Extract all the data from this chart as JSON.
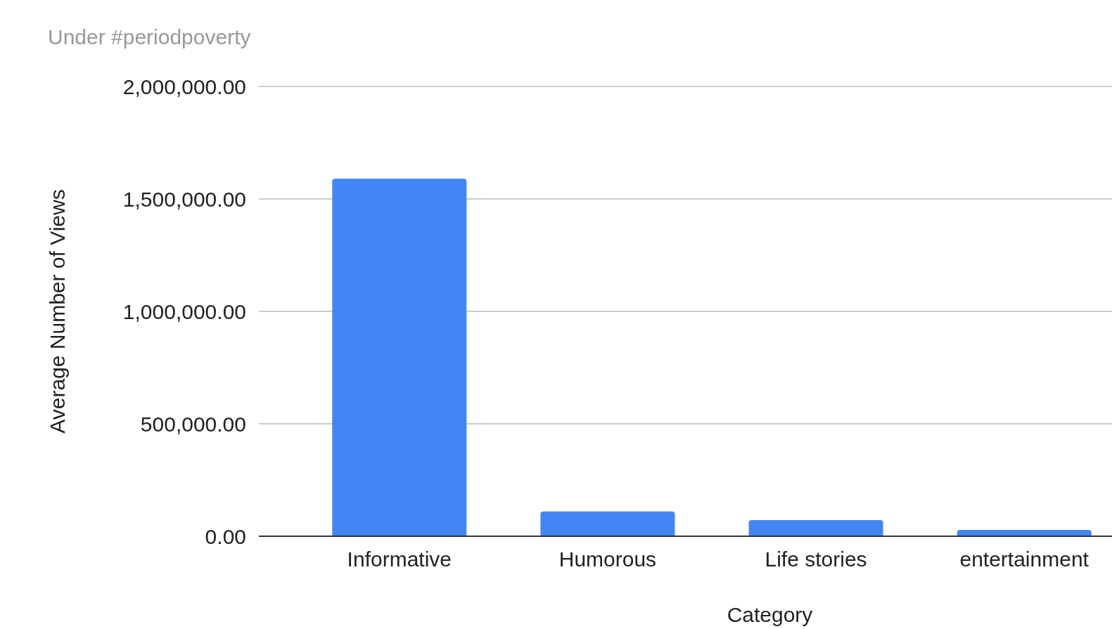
{
  "chart_data": {
    "type": "bar",
    "subtitle": "Under #periodpoverty",
    "xlabel": "Category",
    "ylabel": "Average Number of Views",
    "categories": [
      "Informative",
      "Humorous",
      "Life stories",
      "entertainment"
    ],
    "values": [
      1590000,
      110000,
      72000,
      28000
    ],
    "color": "#4285f4",
    "ylim": [
      0,
      2000000
    ],
    "yticks": [
      {
        "value": 0,
        "label": "0.00"
      },
      {
        "value": 500000,
        "label": "500,000.00"
      },
      {
        "value": 1000000,
        "label": "1,000,000.00"
      },
      {
        "value": 1500000,
        "label": "1,500,000.00"
      },
      {
        "value": 2000000,
        "label": "2,000,000.00"
      }
    ],
    "grid": true
  }
}
